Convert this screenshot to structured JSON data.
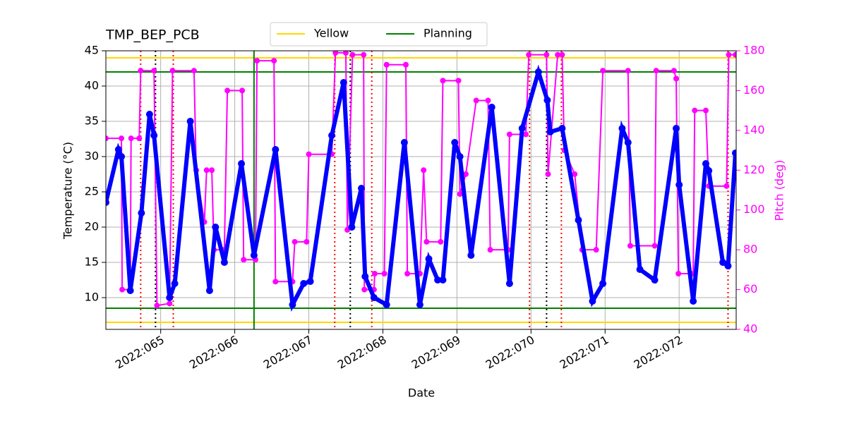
{
  "chart_data": {
    "type": "line",
    "title": "TMP_BEP_PCB",
    "xlabel": "Date",
    "ylabel": "Temperature (°C)",
    "y2label": "Pitch (deg)",
    "y2color": "#ff00ff",
    "xlim": [
      64.26,
      72.77
    ],
    "xticks": [
      {
        "value": 65,
        "label": "2022:065"
      },
      {
        "value": 66,
        "label": "2022:066"
      },
      {
        "value": 67,
        "label": "2022:067"
      },
      {
        "value": 68,
        "label": "2022:068"
      },
      {
        "value": 69,
        "label": "2022:069"
      },
      {
        "value": 70,
        "label": "2022:070"
      },
      {
        "value": 71,
        "label": "2022:071"
      },
      {
        "value": 72,
        "label": "2022:072"
      }
    ],
    "ylim": [
      5.5,
      45
    ],
    "yticks": [
      10,
      15,
      20,
      25,
      30,
      35,
      40,
      45
    ],
    "y2lim": [
      40,
      180
    ],
    "y2ticks": [
      40,
      60,
      80,
      100,
      120,
      140,
      160,
      180
    ],
    "grid": true,
    "legend": "top",
    "limits": [
      {
        "name": "Yellow",
        "color": "#ffd700",
        "values": [
          44,
          6.5
        ]
      },
      {
        "name": "Planning",
        "color": "#008000",
        "values": [
          42,
          8.5
        ]
      }
    ],
    "vlines": [
      {
        "x": 66.26,
        "color": "#008000",
        "dash": false
      },
      {
        "x": 64.73,
        "color": "#ff0000",
        "dash": true
      },
      {
        "x": 65.17,
        "color": "#ff0000",
        "dash": true
      },
      {
        "x": 67.35,
        "color": "#ff0000",
        "dash": true
      },
      {
        "x": 67.85,
        "color": "#ff0000",
        "dash": true
      },
      {
        "x": 69.98,
        "color": "#ff0000",
        "dash": true
      },
      {
        "x": 70.41,
        "color": "#ff0000",
        "dash": true
      },
      {
        "x": 72.66,
        "color": "#ff0000",
        "dash": true
      },
      {
        "x": 64.93,
        "color": "#000000",
        "dash": true
      },
      {
        "x": 67.56,
        "color": "#000000",
        "dash": true
      },
      {
        "x": 70.21,
        "color": "#000000",
        "dash": true
      }
    ],
    "series": [
      {
        "color": "#ff00ff",
        "axis": "y2",
        "x": [
          64.26,
          64.47,
          64.48,
          64.59,
          64.6,
          64.71,
          64.73,
          64.91,
          64.95,
          65.12,
          65.16,
          65.45,
          65.48,
          65.59,
          65.62,
          65.69,
          65.72,
          65.86,
          65.9,
          66.1,
          66.12,
          66.28,
          66.3,
          66.53,
          66.55,
          66.78,
          66.81,
          66.97,
          67.0,
          67.31,
          67.36,
          67.5,
          67.52,
          67.59,
          67.74,
          67.75,
          67.88,
          67.89,
          68.02,
          68.05,
          68.31,
          68.33,
          68.5,
          68.55,
          68.59,
          68.78,
          68.81,
          69.02,
          69.04,
          69.12,
          69.26,
          69.42,
          69.45,
          69.69,
          69.71,
          69.93,
          69.97,
          70.21,
          70.23,
          70.36,
          70.42,
          70.45,
          70.59,
          70.69,
          70.88,
          70.97,
          71.31,
          71.34,
          71.67,
          71.69,
          71.93,
          71.96,
          71.99,
          72.19,
          72.21,
          72.36,
          72.4,
          72.64,
          72.67,
          72.76
        ],
        "values": [
          136,
          136,
          60,
          60,
          136,
          136,
          170,
          170,
          52,
          53,
          170,
          170,
          120,
          94,
          120,
          120,
          80,
          80,
          160,
          160,
          75,
          75,
          175,
          175,
          64,
          64,
          84,
          84,
          128,
          128,
          179,
          179,
          90,
          178,
          178,
          60,
          60,
          68,
          68,
          173,
          173,
          68,
          68,
          120,
          84,
          84,
          165,
          165,
          108,
          118,
          155,
          155,
          80,
          80,
          138,
          138,
          178,
          178,
          118,
          178,
          178,
          130,
          118,
          80,
          80,
          170,
          170,
          82,
          82,
          170,
          170,
          166,
          68,
          68,
          150,
          150,
          112,
          112,
          178,
          178
        ]
      },
      {
        "color": "#0000ff",
        "x": [
          64.26,
          64.43,
          64.47,
          64.59,
          64.74,
          64.85,
          64.91,
          65.12,
          65.19,
          65.4,
          65.66,
          65.74,
          65.86,
          66.09,
          66.26,
          66.55,
          66.78,
          66.93,
          67.02,
          67.31,
          67.47,
          67.58,
          67.71,
          67.76,
          67.88,
          68.05,
          68.29,
          68.5,
          68.62,
          68.74,
          68.81,
          68.97,
          69.04,
          69.19,
          69.47,
          69.71,
          69.88,
          70.1,
          70.22,
          70.26,
          70.42,
          70.64,
          70.83,
          70.97,
          71.23,
          71.31,
          71.47,
          71.67,
          71.96,
          72.0,
          72.19,
          72.36,
          72.4,
          72.59,
          72.66,
          72.76
        ],
        "values": [
          23.5,
          31,
          30,
          11,
          22,
          36,
          33,
          10,
          12,
          35,
          11,
          20,
          15,
          29,
          16,
          31,
          9,
          12,
          12.3,
          33,
          40.5,
          20,
          25.5,
          13,
          10,
          9,
          32,
          9,
          15.5,
          12.5,
          12.5,
          32,
          30,
          16,
          37,
          12,
          34,
          42,
          38,
          33.5,
          34,
          21,
          9.5,
          12,
          34,
          32,
          14,
          12.5,
          34,
          26,
          9.5,
          29,
          28,
          15,
          14.5,
          30.5
        ]
      }
    ]
  }
}
